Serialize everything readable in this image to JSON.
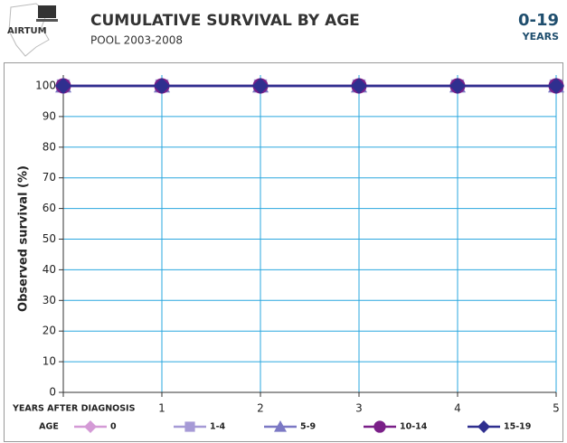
{
  "logo": "AIRTUM",
  "chart_data": {
    "type": "line",
    "title": "CUMULATIVE SURVIVAL BY AGE",
    "subtitle": "POOL 2003-2008",
    "badge": "0-19",
    "badge_sub": "YEARS",
    "xlabel": "YEARS AFTER DIAGNOSIS",
    "ylabel": "Observed survival (%)",
    "legend_title": "AGE",
    "x": [
      0,
      1,
      2,
      3,
      4,
      5
    ],
    "xlim": [
      0,
      5
    ],
    "xticks": [
      1,
      2,
      3,
      4,
      5
    ],
    "ylim": [
      0,
      100
    ],
    "yticks": [
      0,
      10,
      20,
      30,
      40,
      50,
      60,
      70,
      80,
      90,
      100
    ],
    "grid": true,
    "series": [
      {
        "name": "0",
        "color": "#d49ad6",
        "marker": "diamond",
        "values": [
          100,
          100,
          100,
          100,
          100,
          100
        ]
      },
      {
        "name": "1-4",
        "color": "#a69ad6",
        "marker": "square",
        "values": [
          100,
          100,
          100,
          100,
          100,
          100
        ]
      },
      {
        "name": "5-9",
        "color": "#7b78c4",
        "marker": "triangle",
        "values": [
          100,
          100,
          100,
          100,
          100,
          100
        ]
      },
      {
        "name": "10-14",
        "color": "#7a1f88",
        "marker": "circle",
        "values": [
          100,
          100,
          100,
          100,
          100,
          100
        ]
      },
      {
        "name": "15-19",
        "color": "#2f2f8f",
        "marker": "diamond",
        "values": [
          100,
          100,
          100,
          100,
          100,
          100
        ]
      }
    ]
  }
}
